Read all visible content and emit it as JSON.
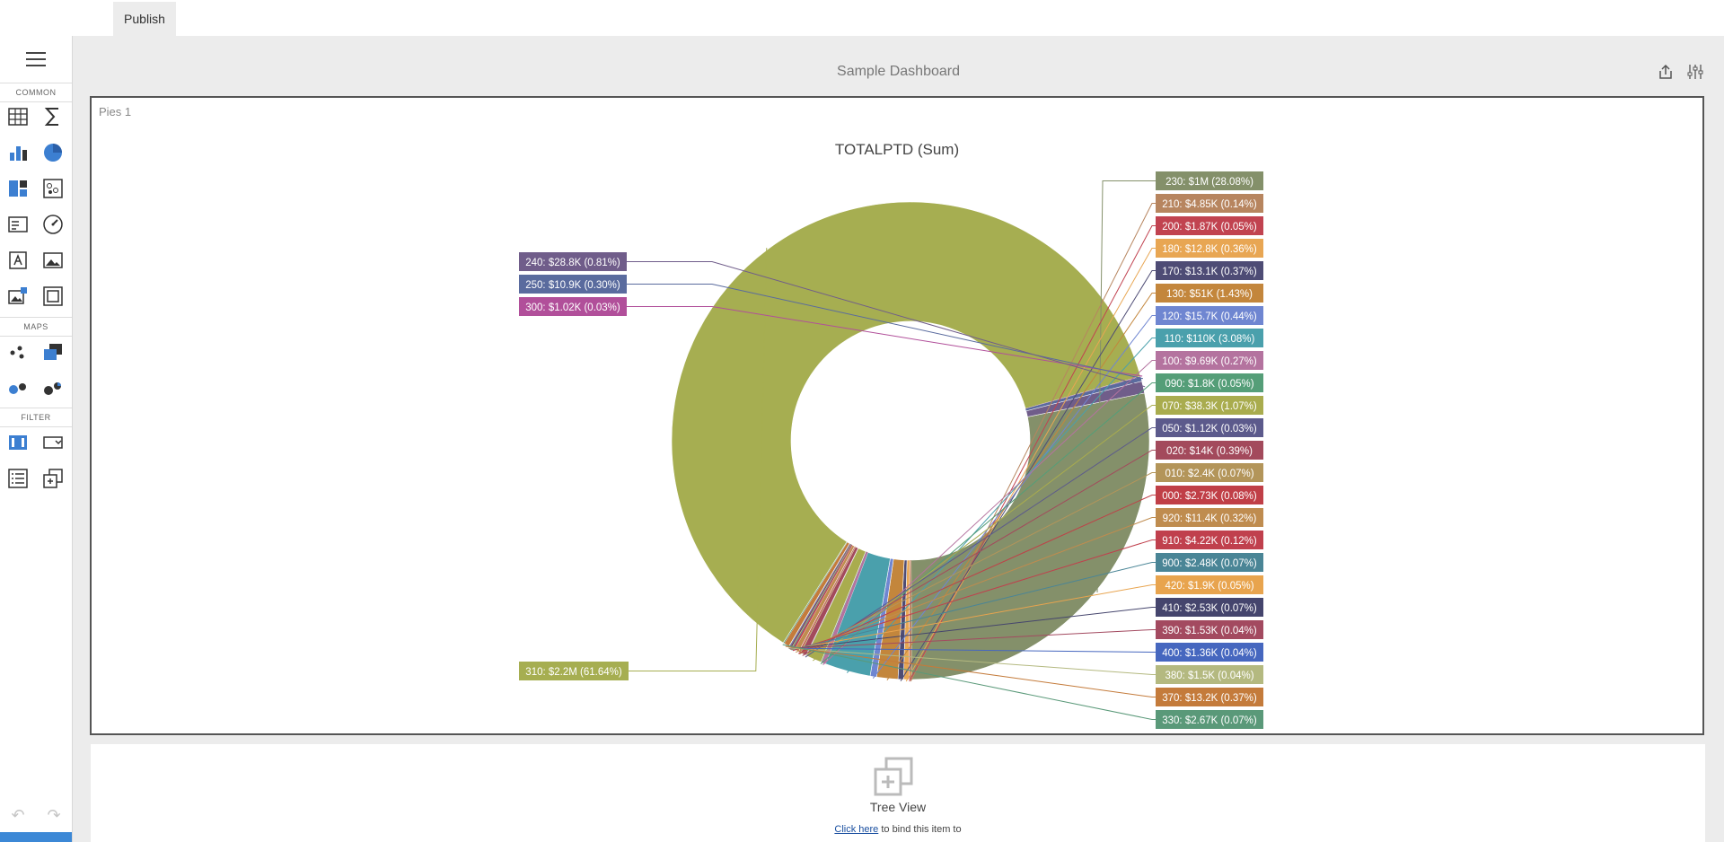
{
  "topbar": {
    "publish_label": "Publish"
  },
  "toolbox": {
    "sections": {
      "common": "COMMON",
      "maps": "MAPS",
      "filter": "FILTER"
    },
    "common_tools": [
      "grid-icon",
      "sum-icon",
      "bar-chart-icon",
      "pie-chart-icon",
      "treemap-icon",
      "scatter-icon",
      "card-icon",
      "gauge-icon",
      "text-box-icon",
      "image-icon",
      "image-list-icon",
      "group-icon"
    ],
    "map_tools": [
      "dot-map-icon",
      "choropleth-map-icon",
      "bubble-map-icon",
      "pie-map-icon"
    ],
    "filter_tools": [
      "range-filter-icon",
      "combo-box-icon",
      "list-box-icon",
      "tree-view-icon"
    ]
  },
  "dashboard": {
    "title": "Sample Dashboard"
  },
  "pie_panel": {
    "label": "Pies 1"
  },
  "chart_data": {
    "type": "pie",
    "title": "TOTALPTD (Sum)",
    "slices": [
      {
        "label": "230: $1M (28.08%)",
        "value": 28.08,
        "color": "#84906a"
      },
      {
        "label": "210: $4.85K (0.14%)",
        "value": 0.14,
        "color": "#b7855f"
      },
      {
        "label": "200: $1.87K (0.05%)",
        "value": 0.05,
        "color": "#c14350"
      },
      {
        "label": "180: $12.8K (0.36%)",
        "value": 0.36,
        "color": "#e8a653"
      },
      {
        "label": "170: $13.1K (0.37%)",
        "value": 0.37,
        "color": "#4e4c75"
      },
      {
        "label": "130: $51K (1.43%)",
        "value": 1.43,
        "color": "#c3863c"
      },
      {
        "label": "120: $15.7K (0.44%)",
        "value": 0.44,
        "color": "#6f86d1"
      },
      {
        "label": "110: $110K (3.08%)",
        "value": 3.08,
        "color": "#4aa0ac"
      },
      {
        "label": "100: $9.69K (0.27%)",
        "value": 0.27,
        "color": "#b4739f"
      },
      {
        "label": "090: $1.8K (0.05%)",
        "value": 0.05,
        "color": "#559e78"
      },
      {
        "label": "070: $38.3K (1.07%)",
        "value": 1.07,
        "color": "#a9ac4e"
      },
      {
        "label": "050: $1.12K (0.03%)",
        "value": 0.03,
        "color": "#5c5a8c"
      },
      {
        "label": "020: $14K (0.39%)",
        "value": 0.39,
        "color": "#a34a5c"
      },
      {
        "label": "010: $2.4K (0.07%)",
        "value": 0.07,
        "color": "#b3955a"
      },
      {
        "label": "000: $2.73K (0.08%)",
        "value": 0.08,
        "color": "#c03f47"
      },
      {
        "label": "920: $11.4K (0.32%)",
        "value": 0.32,
        "color": "#bf8c4f"
      },
      {
        "label": "910: $4.22K (0.12%)",
        "value": 0.12,
        "color": "#c0404d"
      },
      {
        "label": "900: $2.48K (0.07%)",
        "value": 0.07,
        "color": "#4a8596"
      },
      {
        "label": "420: $1.9K (0.05%)",
        "value": 0.05,
        "color": "#e8a44e"
      },
      {
        "label": "410: $2.53K (0.07%)",
        "value": 0.07,
        "color": "#45456d"
      },
      {
        "label": "390: $1.53K (0.04%)",
        "value": 0.04,
        "color": "#a34a60"
      },
      {
        "label": "400: $1.36K (0.04%)",
        "value": 0.04,
        "color": "#4667bf"
      },
      {
        "label": "380: $1.5K (0.04%)",
        "value": 0.04,
        "color": "#b4b980"
      },
      {
        "label": "370: $13.2K (0.37%)",
        "value": 0.37,
        "color": "#c47b3b"
      },
      {
        "label": "330: $2.67K (0.07%)",
        "value": 0.07,
        "color": "#5a9979"
      },
      {
        "label": "310: $2.2M (61.64%)",
        "value": 61.64,
        "color": "#a6ae51"
      },
      {
        "label": "300: $1.02K (0.03%)",
        "value": 0.03,
        "color": "#b14f9a"
      },
      {
        "label": "250: $10.9K (0.30%)",
        "value": 0.3,
        "color": "#5a6b9e"
      },
      {
        "label": "240: $28.8K (0.81%)",
        "value": 0.81,
        "color": "#705d8a"
      }
    ]
  },
  "tree_panel": {
    "title": "Tree View",
    "hint_link": "Click here",
    "hint_text": " to bind this item to"
  }
}
